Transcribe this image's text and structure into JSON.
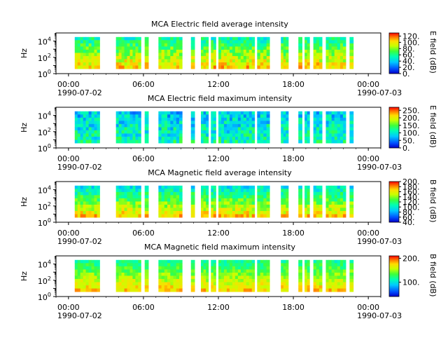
{
  "chart_data": [
    {
      "type": "heatmap",
      "title": "MCA  Electric field average intensity",
      "ylabel": "Hz",
      "y_scale": "log",
      "ylim": [
        1,
        100000
      ],
      "y_ticks": [
        {
          "value": 1,
          "base": "10",
          "exp": "0"
        },
        {
          "value": 100,
          "base": "10",
          "exp": "2"
        },
        {
          "value": 10000,
          "base": "10",
          "exp": "4"
        }
      ],
      "x_ticks": [
        "00:00",
        "06:00",
        "12:00",
        "18:00",
        "00:00"
      ],
      "x_dates": [
        "1990-07-02",
        "1990-07-03"
      ],
      "x_range_hours": [
        -1,
        25
      ],
      "colorbar": {
        "label": "E field (dB)",
        "min": 0,
        "max": 130,
        "ticks": [
          "0.",
          "20.",
          "40.",
          "60.",
          "80.",
          "100.",
          "120."
        ],
        "tick_values": [
          0,
          20,
          40,
          60,
          80,
          100,
          120
        ]
      },
      "data_segments_hours": [
        [
          0.5,
          2.5
        ],
        [
          3.8,
          5.8
        ],
        [
          6.1,
          6.4
        ],
        [
          7.2,
          9.1
        ],
        [
          9.8,
          10.1
        ],
        [
          10.6,
          11.2
        ],
        [
          11.4,
          11.8
        ],
        [
          12.0,
          14.9
        ],
        [
          15.1,
          16.1
        ],
        [
          17.0,
          17.6
        ],
        [
          18.4,
          18.7
        ],
        [
          18.9,
          19.3
        ],
        [
          19.6,
          20.3
        ],
        [
          20.6,
          22.2
        ],
        [
          22.5,
          22.8
        ]
      ]
    },
    {
      "type": "heatmap",
      "title": "MCA  Electric field maximum intensity",
      "ylabel": "Hz",
      "y_scale": "log",
      "ylim": [
        1,
        100000
      ],
      "y_ticks": [
        {
          "value": 1,
          "base": "10",
          "exp": "0"
        },
        {
          "value": 100,
          "base": "10",
          "exp": "2"
        },
        {
          "value": 10000,
          "base": "10",
          "exp": "4"
        }
      ],
      "x_ticks": [
        "00:00",
        "06:00",
        "12:00",
        "18:00",
        "00:00"
      ],
      "x_dates": [
        "1990-07-02",
        "1990-07-03"
      ],
      "x_range_hours": [
        -1,
        25
      ],
      "colorbar": {
        "label": "E field (dB)",
        "min": 0,
        "max": 270,
        "ticks": [
          "0.",
          "50.",
          "100.",
          "150.",
          "200.",
          "250."
        ],
        "tick_values": [
          0,
          50,
          100,
          150,
          200,
          250
        ]
      },
      "data_segments_hours": [
        [
          0.5,
          2.5
        ],
        [
          3.8,
          5.8
        ],
        [
          6.1,
          6.4
        ],
        [
          7.2,
          9.1
        ],
        [
          9.8,
          10.1
        ],
        [
          10.6,
          11.2
        ],
        [
          11.4,
          11.8
        ],
        [
          12.0,
          14.9
        ],
        [
          15.1,
          16.1
        ],
        [
          17.0,
          17.6
        ],
        [
          18.4,
          18.7
        ],
        [
          18.9,
          19.3
        ],
        [
          19.6,
          20.3
        ],
        [
          20.6,
          22.2
        ],
        [
          22.5,
          22.8
        ]
      ]
    },
    {
      "type": "heatmap",
      "title": "MCA  Magnetic field average intensity",
      "ylabel": "Hz",
      "y_scale": "log",
      "ylim": [
        1,
        100000
      ],
      "y_ticks": [
        {
          "value": 1,
          "base": "10",
          "exp": "0"
        },
        {
          "value": 100,
          "base": "10",
          "exp": "2"
        },
        {
          "value": 10000,
          "base": "10",
          "exp": "4"
        }
      ],
      "x_ticks": [
        "00:00",
        "06:00",
        "12:00",
        "18:00",
        "00:00"
      ],
      "x_dates": [
        "1990-07-02",
        "1990-07-03"
      ],
      "x_range_hours": [
        -1,
        25
      ],
      "colorbar": {
        "label": "B field (dB)",
        "min": 40,
        "max": 200,
        "ticks": [
          "40.",
          "60.",
          "80.",
          "100.",
          "120.",
          "140.",
          "160.",
          "180.",
          "200."
        ],
        "tick_values": [
          40,
          60,
          80,
          100,
          120,
          140,
          160,
          180,
          200
        ]
      },
      "data_segments_hours": [
        [
          0.5,
          2.5
        ],
        [
          3.8,
          5.8
        ],
        [
          6.1,
          6.4
        ],
        [
          7.2,
          9.1
        ],
        [
          9.8,
          10.1
        ],
        [
          10.6,
          11.2
        ],
        [
          11.4,
          11.8
        ],
        [
          12.0,
          14.9
        ],
        [
          15.1,
          16.1
        ],
        [
          17.0,
          17.6
        ],
        [
          18.4,
          18.7
        ],
        [
          18.9,
          19.3
        ],
        [
          19.6,
          20.3
        ],
        [
          20.6,
          22.2
        ],
        [
          22.5,
          22.8
        ]
      ]
    },
    {
      "type": "heatmap",
      "title": "MCA  Magnetic field maximum intensity",
      "ylabel": "Hz",
      "y_scale": "log",
      "ylim": [
        1,
        100000
      ],
      "y_ticks": [
        {
          "value": 1,
          "base": "10",
          "exp": "0"
        },
        {
          "value": 100,
          "base": "10",
          "exp": "2"
        },
        {
          "value": 10000,
          "base": "10",
          "exp": "4"
        }
      ],
      "x_ticks": [
        "00:00",
        "06:00",
        "12:00",
        "18:00",
        "00:00"
      ],
      "x_dates": [
        "1990-07-02",
        "1990-07-03"
      ],
      "x_range_hours": [
        -1,
        25
      ],
      "colorbar": {
        "label": "B field (dB)",
        "min": 40,
        "max": 210,
        "ticks": [
          "100.",
          "200."
        ],
        "tick_values": [
          100,
          200
        ]
      },
      "data_segments_hours": [
        [
          0.5,
          2.5
        ],
        [
          3.8,
          5.8
        ],
        [
          6.1,
          6.4
        ],
        [
          7.2,
          9.1
        ],
        [
          9.8,
          10.1
        ],
        [
          10.6,
          11.2
        ],
        [
          11.4,
          11.8
        ],
        [
          12.0,
          14.9
        ],
        [
          15.1,
          16.1
        ],
        [
          17.0,
          17.6
        ],
        [
          18.4,
          18.7
        ],
        [
          18.9,
          19.3
        ],
        [
          19.6,
          20.3
        ],
        [
          20.6,
          22.2
        ],
        [
          22.5,
          22.8
        ]
      ]
    }
  ]
}
